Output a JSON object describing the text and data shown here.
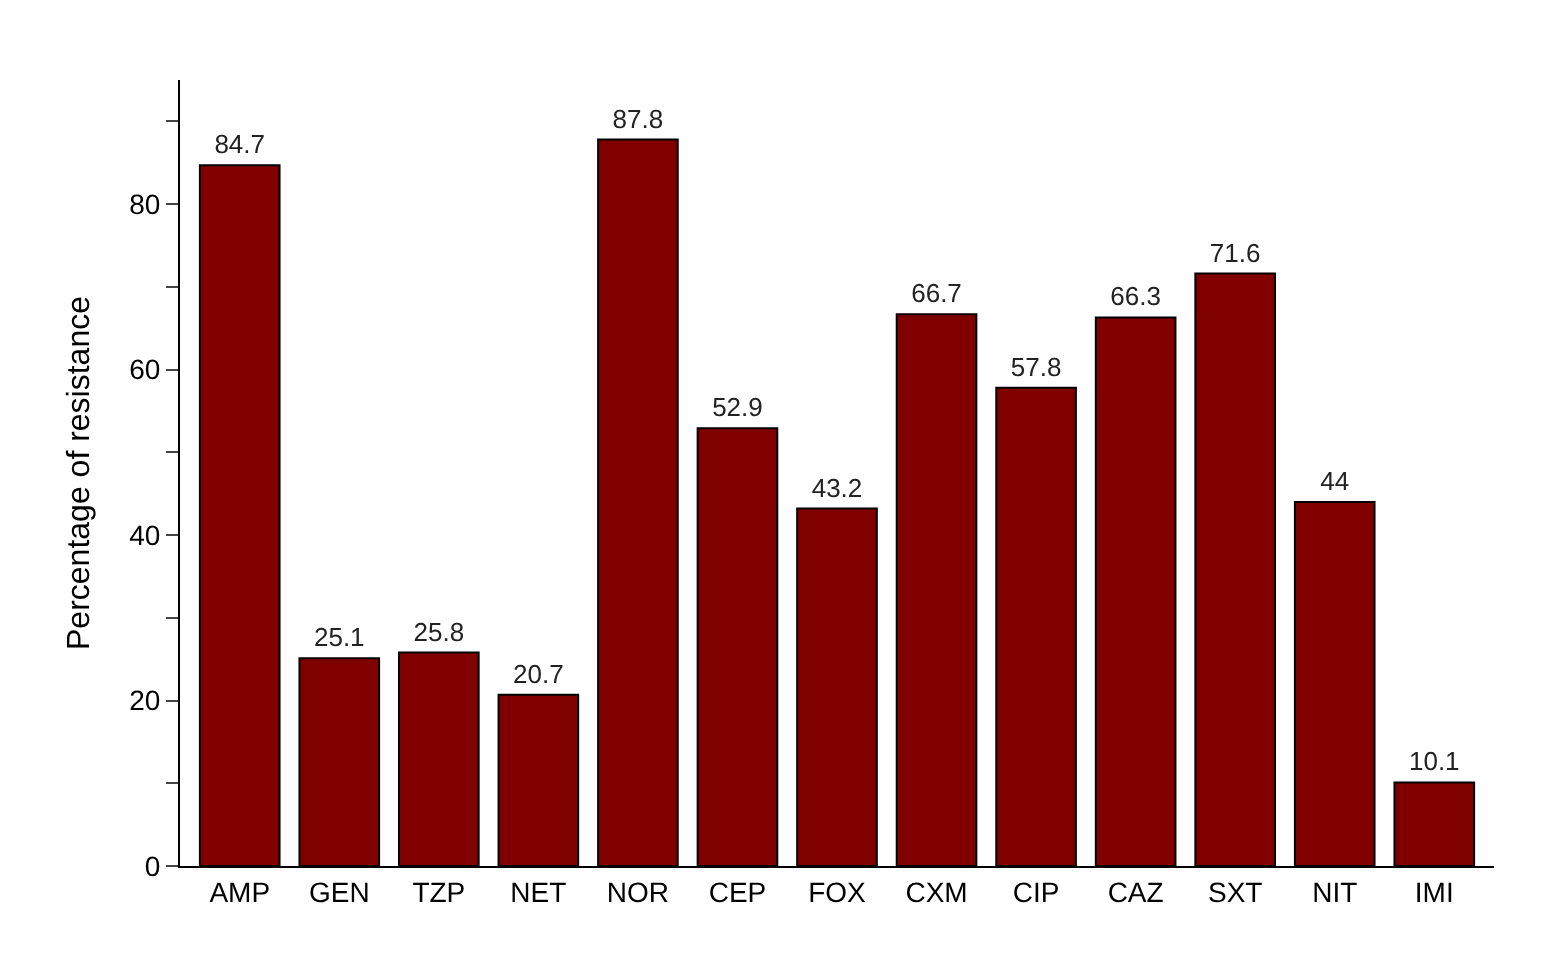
{
  "chart_data": {
    "type": "bar",
    "ylabel": "Percentage of resistance",
    "categories": [
      "AMP",
      "GEN",
      "TZP",
      "NET",
      "NOR",
      "CEP",
      "FOX",
      "CXM",
      "CIP",
      "CAZ",
      "SXT",
      "NIT",
      "IMI"
    ],
    "values": [
      84.7,
      25.1,
      25.8,
      20.7,
      87.8,
      52.9,
      43.2,
      66.7,
      57.8,
      66.3,
      71.6,
      44,
      10.1
    ],
    "color": "#800000",
    "ylim": [
      0,
      95
    ],
    "yticks": [
      0,
      {
        "value": 10,
        "label": null
      },
      20,
      {
        "value": 30,
        "label": null
      },
      40,
      {
        "value": 50,
        "label": null
      },
      60,
      {
        "value": 70,
        "label": null
      },
      80,
      {
        "value": 90,
        "label": null
      }
    ],
    "data_labels": true
  }
}
